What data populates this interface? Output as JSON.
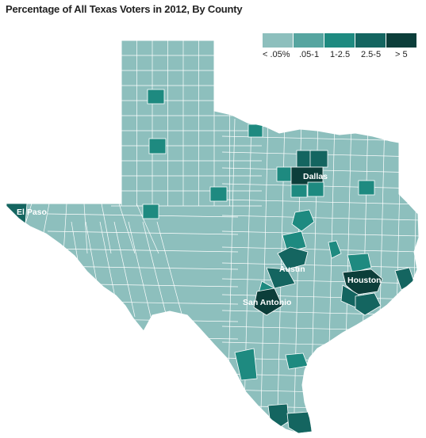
{
  "title": "Percentage of All Texas Voters in 2012, By County",
  "legend": {
    "bins": [
      {
        "label": "< .05%",
        "color": "#8dbfbd"
      },
      {
        "label": ".05-1",
        "color": "#56a5a0"
      },
      {
        "label": "1-2.5",
        "color": "#1e8a80"
      },
      {
        "label": "2.5-5",
        "color": "#146560"
      },
      {
        "label": "> 5",
        "color": "#0c3e3a"
      }
    ]
  },
  "cities": [
    {
      "name": "Dallas",
      "bin": 4
    },
    {
      "name": "El Paso",
      "bin": 3
    },
    {
      "name": "Austin",
      "bin": 3
    },
    {
      "name": "Houston",
      "bin": 4
    },
    {
      "name": "San Antonio",
      "bin": 4
    }
  ],
  "colors": {
    "base": "#8dbfbd",
    "border": "#ffffff"
  }
}
